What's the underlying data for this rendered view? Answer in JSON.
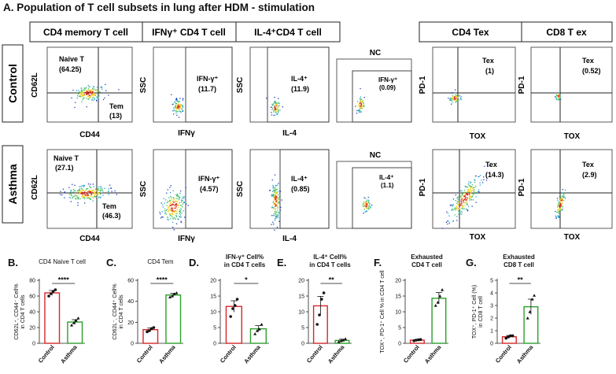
{
  "title": "A. Population of T cell subsets in lung after HDM - stimulation",
  "headers": [
    "CD4 memory T cell",
    "IFNγ⁺ CD4 T cell",
    "IL-4⁺CD4 T cell",
    "CD4 Tex",
    "CD8 T ex"
  ],
  "row_labels": [
    "Control",
    "Asthma"
  ],
  "nc_label": "NC",
  "flow_panels": {
    "control": {
      "memory": {
        "ylabel": "CD62L",
        "xlabel": "CD44",
        "q1_name": "Naive T",
        "q1_val": "(64.25)",
        "q2_name": "Tem",
        "q2_val": "(13)"
      },
      "ifng": {
        "ylabel": "SSC",
        "xlabel": "IFNγ",
        "gate_name": "IFN-γ⁺",
        "gate_val": "(11.7)"
      },
      "il4": {
        "ylabel": "SSC",
        "xlabel": "IL-4",
        "gate_name": "IL-4⁺",
        "gate_val": "(11.9)"
      },
      "nc": {
        "gate_name": "IFN-γ⁺",
        "gate_val": "(0.09)"
      },
      "cd4tex": {
        "ylabel": "PD-1",
        "xlabel": "TOX",
        "gate_name": "Tex",
        "gate_val": "(1)"
      },
      "cd8tex": {
        "ylabel": "PD-1",
        "xlabel": "TOX",
        "gate_name": "Tex",
        "gate_val": "(0.52)"
      }
    },
    "asthma": {
      "memory": {
        "ylabel": "CD62L",
        "xlabel": "CD44",
        "q1_name": "Naive T",
        "q1_val": "(27.1)",
        "q2_name": "Tem",
        "q2_val": "(46.3)"
      },
      "ifng": {
        "ylabel": "SSC",
        "xlabel": "IFNγ",
        "gate_name": "IFN-γ⁺",
        "gate_val": "(4.57)"
      },
      "il4": {
        "ylabel": "SSC",
        "xlabel": "IL-4",
        "gate_name": "IL-4⁺",
        "gate_val": "(0.85)"
      },
      "nc": {
        "gate_name": "IL-4⁺",
        "gate_val": "(1.1)"
      },
      "cd4tex": {
        "ylabel": "PD-1",
        "xlabel": "TOX",
        "gate_name": "Tex",
        "gate_val": "(14.3)"
      },
      "cd8tex": {
        "ylabel": "PD-1",
        "xlabel": "TOX",
        "gate_name": "Tex",
        "gate_val": "(2.9)"
      }
    }
  },
  "colors": {
    "control": "#d62728",
    "asthma": "#2ca02c",
    "black": "#111111"
  },
  "chart_data": [
    {
      "type": "bar",
      "panel": "B.",
      "title": "CD4 Naive T cell",
      "ylabel": "CD62L⁺, CD44⁻ Cell% in CD4 T cells",
      "categories": [
        "Control",
        "Asthma"
      ],
      "values": [
        64,
        27
      ],
      "errors": [
        3,
        3
      ],
      "points": [
        [
          60,
          63,
          66,
          68
        ],
        [
          23,
          26,
          29,
          32
        ]
      ],
      "ylim": [
        0,
        80
      ],
      "yticks": [
        0,
        20,
        40,
        60,
        80
      ],
      "significance": "****"
    },
    {
      "type": "bar",
      "panel": "C.",
      "title": "CD4 Tem",
      "ylabel": "CD62L⁻, CD44⁺ Cell% in CD4 T cells",
      "categories": [
        "Control",
        "Asthma"
      ],
      "values": [
        13,
        46
      ],
      "errors": [
        1.5,
        1.5
      ],
      "points": [
        [
          11,
          12,
          14,
          15
        ],
        [
          44,
          45,
          47,
          48
        ]
      ],
      "ylim": [
        0,
        60
      ],
      "yticks": [
        0,
        20,
        40,
        60
      ],
      "significance": "****"
    },
    {
      "type": "bar",
      "panel": "D.",
      "title": "IFN-γ⁺ Cell% in CD4 T cells",
      "ylabel": "",
      "categories": [
        "Control",
        "Asthma"
      ],
      "values": [
        11.7,
        4.6
      ],
      "errors": [
        1.8,
        1
      ],
      "points": [
        [
          8.5,
          11,
          12,
          14
        ],
        [
          3,
          4,
          4.5,
          6
        ]
      ],
      "ylim": [
        0,
        20
      ],
      "yticks": [
        0,
        5,
        10,
        15,
        20
      ],
      "significance": "*"
    },
    {
      "type": "bar",
      "panel": "E.",
      "title": "IL-4⁺ Cell% in CD4 T cells",
      "ylabel": "",
      "categories": [
        "Control",
        "Asthma"
      ],
      "values": [
        11.9,
        0.9
      ],
      "errors": [
        3,
        0.4
      ],
      "points": [
        [
          6,
          9,
          14,
          16
        ],
        [
          0.5,
          0.8,
          1,
          1.4
        ]
      ],
      "ylim": [
        0,
        20
      ],
      "yticks": [
        0,
        5,
        10,
        15,
        20
      ],
      "significance": "**"
    },
    {
      "type": "bar",
      "panel": "F.",
      "title": "Exhausted CD4 T cell",
      "ylabel": "TOX⁺, PD-1⁺ Cell % in CD4 T cell",
      "categories": [
        "Control",
        "Asthma"
      ],
      "values": [
        1,
        14.3
      ],
      "errors": [
        0.2,
        1.8
      ],
      "points": [
        [
          0.8,
          1,
          1.1,
          1.2
        ],
        [
          12,
          13,
          15,
          17
        ]
      ],
      "ylim": [
        0,
        20
      ],
      "yticks": [
        0,
        5,
        10,
        15,
        20
      ],
      "significance": ""
    },
    {
      "type": "bar",
      "panel": "G.",
      "title": "Exhausted CD8 T cell",
      "ylabel": "TOX⁺, PD-1⁺ Cell (%) in CD8 T cell",
      "categories": [
        "Control",
        "Asthma"
      ],
      "values": [
        0.52,
        2.9
      ],
      "errors": [
        0.1,
        0.6
      ],
      "points": [
        [
          0.4,
          0.5,
          0.6,
          0.6
        ],
        [
          2,
          2.5,
          3.5,
          3.8
        ]
      ],
      "ylim": [
        0,
        5
      ],
      "yticks": [
        0,
        1,
        2,
        3,
        4,
        5
      ],
      "significance": "**"
    }
  ]
}
